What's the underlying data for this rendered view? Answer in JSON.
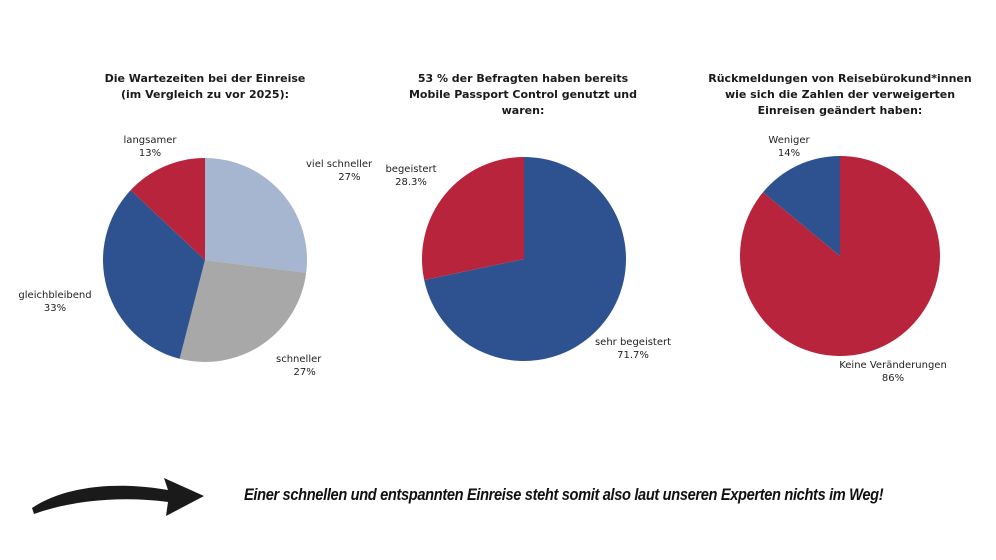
{
  "chart_data": [
    {
      "type": "pie",
      "title": "Die Wartezeiten bei der Einreise\n(im Vergleich zu vor 2025):",
      "slices": [
        {
          "label": "viel schneller",
          "value": 27,
          "display": "27%",
          "color": "#a6b6d0"
        },
        {
          "label": "schneller",
          "value": 27,
          "display": "27%",
          "color": "#a8a8a8"
        },
        {
          "label": "gleichbleibend",
          "value": 33,
          "display": "33%",
          "color": "#2e528f"
        },
        {
          "label": "langsamer",
          "value": 13,
          "display": "13%",
          "color": "#b8243c"
        }
      ]
    },
    {
      "type": "pie",
      "title": "53 % der Befragten haben bereits\nMobile Passport Control genutzt und\nwaren:",
      "slices": [
        {
          "label": "sehr begeistert",
          "value": 71.7,
          "display": "71.7%",
          "color": "#2e528f"
        },
        {
          "label": "begeistert",
          "value": 28.3,
          "display": "28.3%",
          "color": "#b8243c"
        }
      ]
    },
    {
      "type": "pie",
      "title": "Rückmeldungen von Reisebürokund*innen\nwie sich die Zahlen der verweigerten\nEinreisen geändert haben:",
      "slices": [
        {
          "label": "Keine Veränderungen",
          "value": 86,
          "display": "86%",
          "color": "#b8243c"
        },
        {
          "label": "Weniger",
          "value": 14,
          "display": "14%",
          "color": "#2e528f"
        }
      ]
    }
  ],
  "footer": {
    "text": "Einer schnellen und entspannten Einreise steht somit also laut unseren Experten nichts im Weg!"
  },
  "icons": {
    "arrow": "arrow-right-brush-icon"
  }
}
